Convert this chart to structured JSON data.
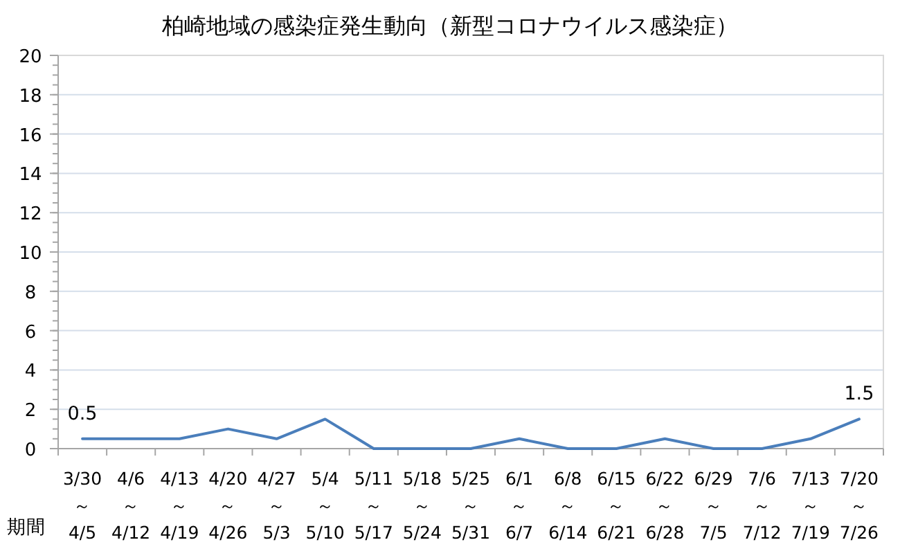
{
  "chart_data": {
    "type": "line",
    "title": "柏崎地域の感染症発生動向（新型コロナウイルス感染症）",
    "xlabel": "期間",
    "categories": [
      "3/30\n～\n4/5",
      "4/6\n～\n4/12",
      "4/13\n～\n4/19",
      "4/20\n～\n4/26",
      "4/27\n～\n5/3",
      "5/4\n～\n5/10",
      "5/11\n～\n5/17",
      "5/18\n～\n5/24",
      "5/25\n～\n5/31",
      "6/1\n～\n6/7",
      "6/8\n～\n6/14",
      "6/15\n～\n6/21",
      "6/22\n～\n6/28",
      "6/29\n～\n7/5",
      "7/6\n～\n7/12",
      "7/13\n～\n7/19",
      "7/20\n～\n7/26"
    ],
    "series": [
      {
        "color": "#4a7ebb",
        "values": [
          0.5,
          0.5,
          0.5,
          1,
          0.5,
          1.5,
          0,
          0,
          0,
          0.5,
          0,
          0,
          0.5,
          0,
          0,
          0.5,
          1.5
        ],
        "value_labels": [
          "0.5",
          null,
          null,
          null,
          null,
          null,
          null,
          null,
          null,
          null,
          null,
          null,
          null,
          null,
          null,
          null,
          "1.5"
        ]
      }
    ],
    "ylim": [
      0,
      20
    ],
    "yticks": [
      0,
      2,
      4,
      6,
      8,
      10,
      12,
      14,
      16,
      18,
      20
    ],
    "grid": "y",
    "marker": "none",
    "line_style": "solid"
  }
}
